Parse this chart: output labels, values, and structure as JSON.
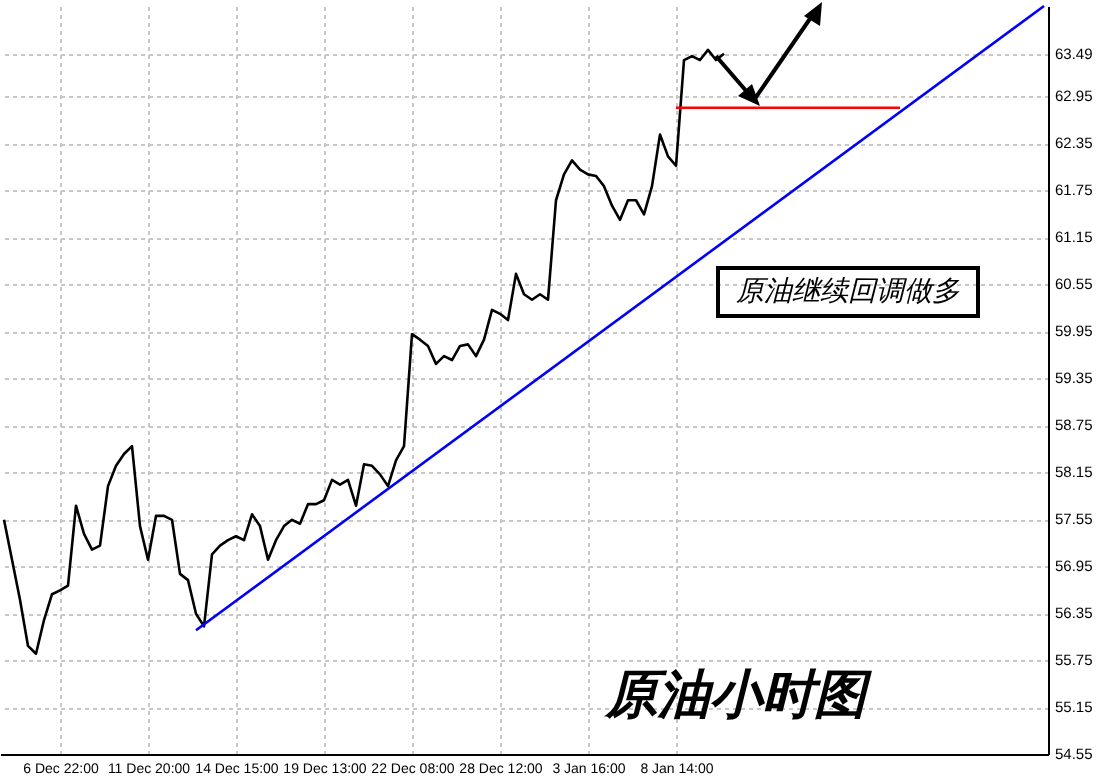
{
  "chart_data": {
    "type": "line",
    "categories": [
      null,
      null,
      null,
      null,
      null,
      null,
      null,
      "6 Dec 22:00",
      null,
      null,
      null,
      null,
      null,
      null,
      null,
      null,
      null,
      null,
      "11 Dec 20:00",
      null,
      null,
      null,
      null,
      null,
      null,
      null,
      null,
      null,
      null,
      "14 Dec 15:00",
      null,
      null,
      null,
      null,
      null,
      null,
      null,
      null,
      null,
      null,
      "19 Dec 13:00",
      null,
      null,
      null,
      null,
      null,
      null,
      null,
      null,
      null,
      null,
      "22 Dec 08:00",
      null,
      null,
      null,
      null,
      null,
      null,
      null,
      null,
      null,
      null,
      "28 Dec 12:00",
      null,
      null,
      null,
      null,
      null,
      null,
      null,
      null,
      null,
      null,
      "3 Jan 16:00",
      null,
      null,
      null,
      null,
      null,
      null,
      null,
      null,
      null,
      null,
      "8 Jan 14:00",
      null,
      null,
      null,
      null,
      null,
      null,
      null,
      null,
      null,
      null,
      null,
      null,
      null,
      null,
      null,
      null,
      null,
      null,
      null,
      null,
      null,
      null,
      null,
      null,
      null,
      null,
      null,
      null,
      null,
      null,
      null,
      null,
      null,
      null,
      null,
      null,
      null,
      null,
      null,
      null,
      null,
      null,
      null,
      null,
      null,
      null
    ],
    "series": [
      {
        "color": "#000000",
        "values": [
          57.54,
          57.03,
          56.52,
          55.93,
          55.83,
          56.26,
          56.59,
          56.64,
          56.7,
          57.72,
          57.36,
          57.16,
          57.21,
          57.97,
          58.23,
          58.38,
          58.48,
          57.46,
          57.03,
          57.59,
          57.59,
          57.54,
          56.85,
          56.77,
          56.34,
          56.18,
          57.1,
          57.21,
          57.28,
          57.33,
          57.28,
          57.61,
          57.46,
          57.03,
          57.28,
          57.46,
          57.54,
          57.49,
          57.74,
          57.74,
          57.79,
          58.05,
          57.99,
          58.05,
          57.72,
          58.25,
          58.23,
          58.12,
          57.97,
          58.3,
          58.48,
          59.91,
          59.84,
          59.76,
          59.53,
          59.63,
          59.58,
          59.76,
          59.78,
          59.63,
          59.84,
          60.22,
          60.17,
          60.09,
          60.68,
          60.42,
          60.35,
          60.42,
          60.35,
          61.62,
          61.95,
          62.13,
          62.01,
          61.95,
          61.93,
          61.8,
          61.55,
          61.37,
          61.62,
          61.62,
          61.44,
          61.8,
          62.46,
          62.18,
          62.06,
          63.41,
          63.46,
          63.41,
          63.54,
          63.41,
          63.49,
          null,
          null,
          null,
          null,
          null,
          null,
          null,
          null,
          null,
          null,
          null,
          null,
          null,
          null,
          null,
          null,
          null,
          null,
          null,
          null,
          null,
          null,
          null,
          null,
          null,
          null,
          null,
          null,
          null,
          null,
          null,
          null,
          null,
          null,
          null,
          null,
          null,
          null,
          null,
          null
        ]
      },
      {
        "color": "#0000ff",
        "values": [
          null,
          null,
          null,
          null,
          null,
          null,
          null,
          null,
          null,
          null,
          null,
          null,
          null,
          null,
          null,
          null,
          null,
          null,
          null,
          null,
          null,
          null,
          null,
          null,
          56.13,
          null,
          null,
          null,
          null,
          null,
          null,
          null,
          null,
          null,
          null,
          null,
          null,
          null,
          null,
          null,
          null,
          null,
          null,
          null,
          null,
          null,
          null,
          null,
          null,
          null,
          null,
          null,
          null,
          null,
          null,
          null,
          null,
          null,
          null,
          null,
          null,
          null,
          null,
          null,
          null,
          null,
          null,
          null,
          null,
          null,
          null,
          null,
          null,
          null,
          null,
          null,
          null,
          null,
          null,
          null,
          null,
          null,
          null,
          null,
          null,
          null,
          null,
          null,
          null,
          null,
          null,
          null,
          null,
          null,
          null,
          null,
          null,
          null,
          null,
          null,
          null,
          null,
          null,
          null,
          null,
          null,
          null,
          null,
          null,
          null,
          null,
          null,
          null,
          null,
          null,
          null,
          null,
          null,
          null,
          null,
          null,
          null,
          null,
          null,
          null,
          null,
          null,
          null,
          null,
          null,
          64.1
        ]
      },
      {
        "color": "#ff0000",
        "values": [
          null,
          null,
          null,
          null,
          null,
          null,
          null,
          null,
          null,
          null,
          null,
          null,
          null,
          null,
          null,
          null,
          null,
          null,
          null,
          null,
          null,
          null,
          null,
          null,
          null,
          null,
          null,
          null,
          null,
          null,
          null,
          null,
          null,
          null,
          null,
          null,
          null,
          null,
          null,
          null,
          null,
          null,
          null,
          null,
          null,
          null,
          null,
          null,
          null,
          null,
          null,
          null,
          null,
          null,
          null,
          null,
          null,
          null,
          null,
          null,
          null,
          null,
          null,
          null,
          null,
          null,
          null,
          null,
          null,
          null,
          null,
          null,
          null,
          null,
          null,
          null,
          null,
          null,
          null,
          null,
          null,
          null,
          null,
          null,
          62.8,
          null,
          null,
          null,
          null,
          null,
          null,
          null,
          null,
          null,
          null,
          null,
          null,
          null,
          null,
          null,
          null,
          null,
          null,
          null,
          null,
          null,
          null,
          null,
          null,
          null,
          null,
          null,
          62.8,
          null,
          null,
          null,
          null,
          null,
          null,
          null,
          null,
          null,
          null,
          null,
          null,
          null,
          null,
          null,
          null,
          null,
          null
        ]
      }
    ],
    "ylim": [
      54.55,
      64.1
    ],
    "yticks": [
      54.55,
      55.15,
      55.75,
      56.35,
      56.95,
      57.55,
      58.15,
      58.75,
      59.35,
      59.95,
      60.55,
      61.15,
      61.75,
      62.35,
      62.95,
      63.49
    ],
    "grid": true,
    "annotations": [
      "原油继续回调做多",
      "原油小时图"
    ]
  }
}
